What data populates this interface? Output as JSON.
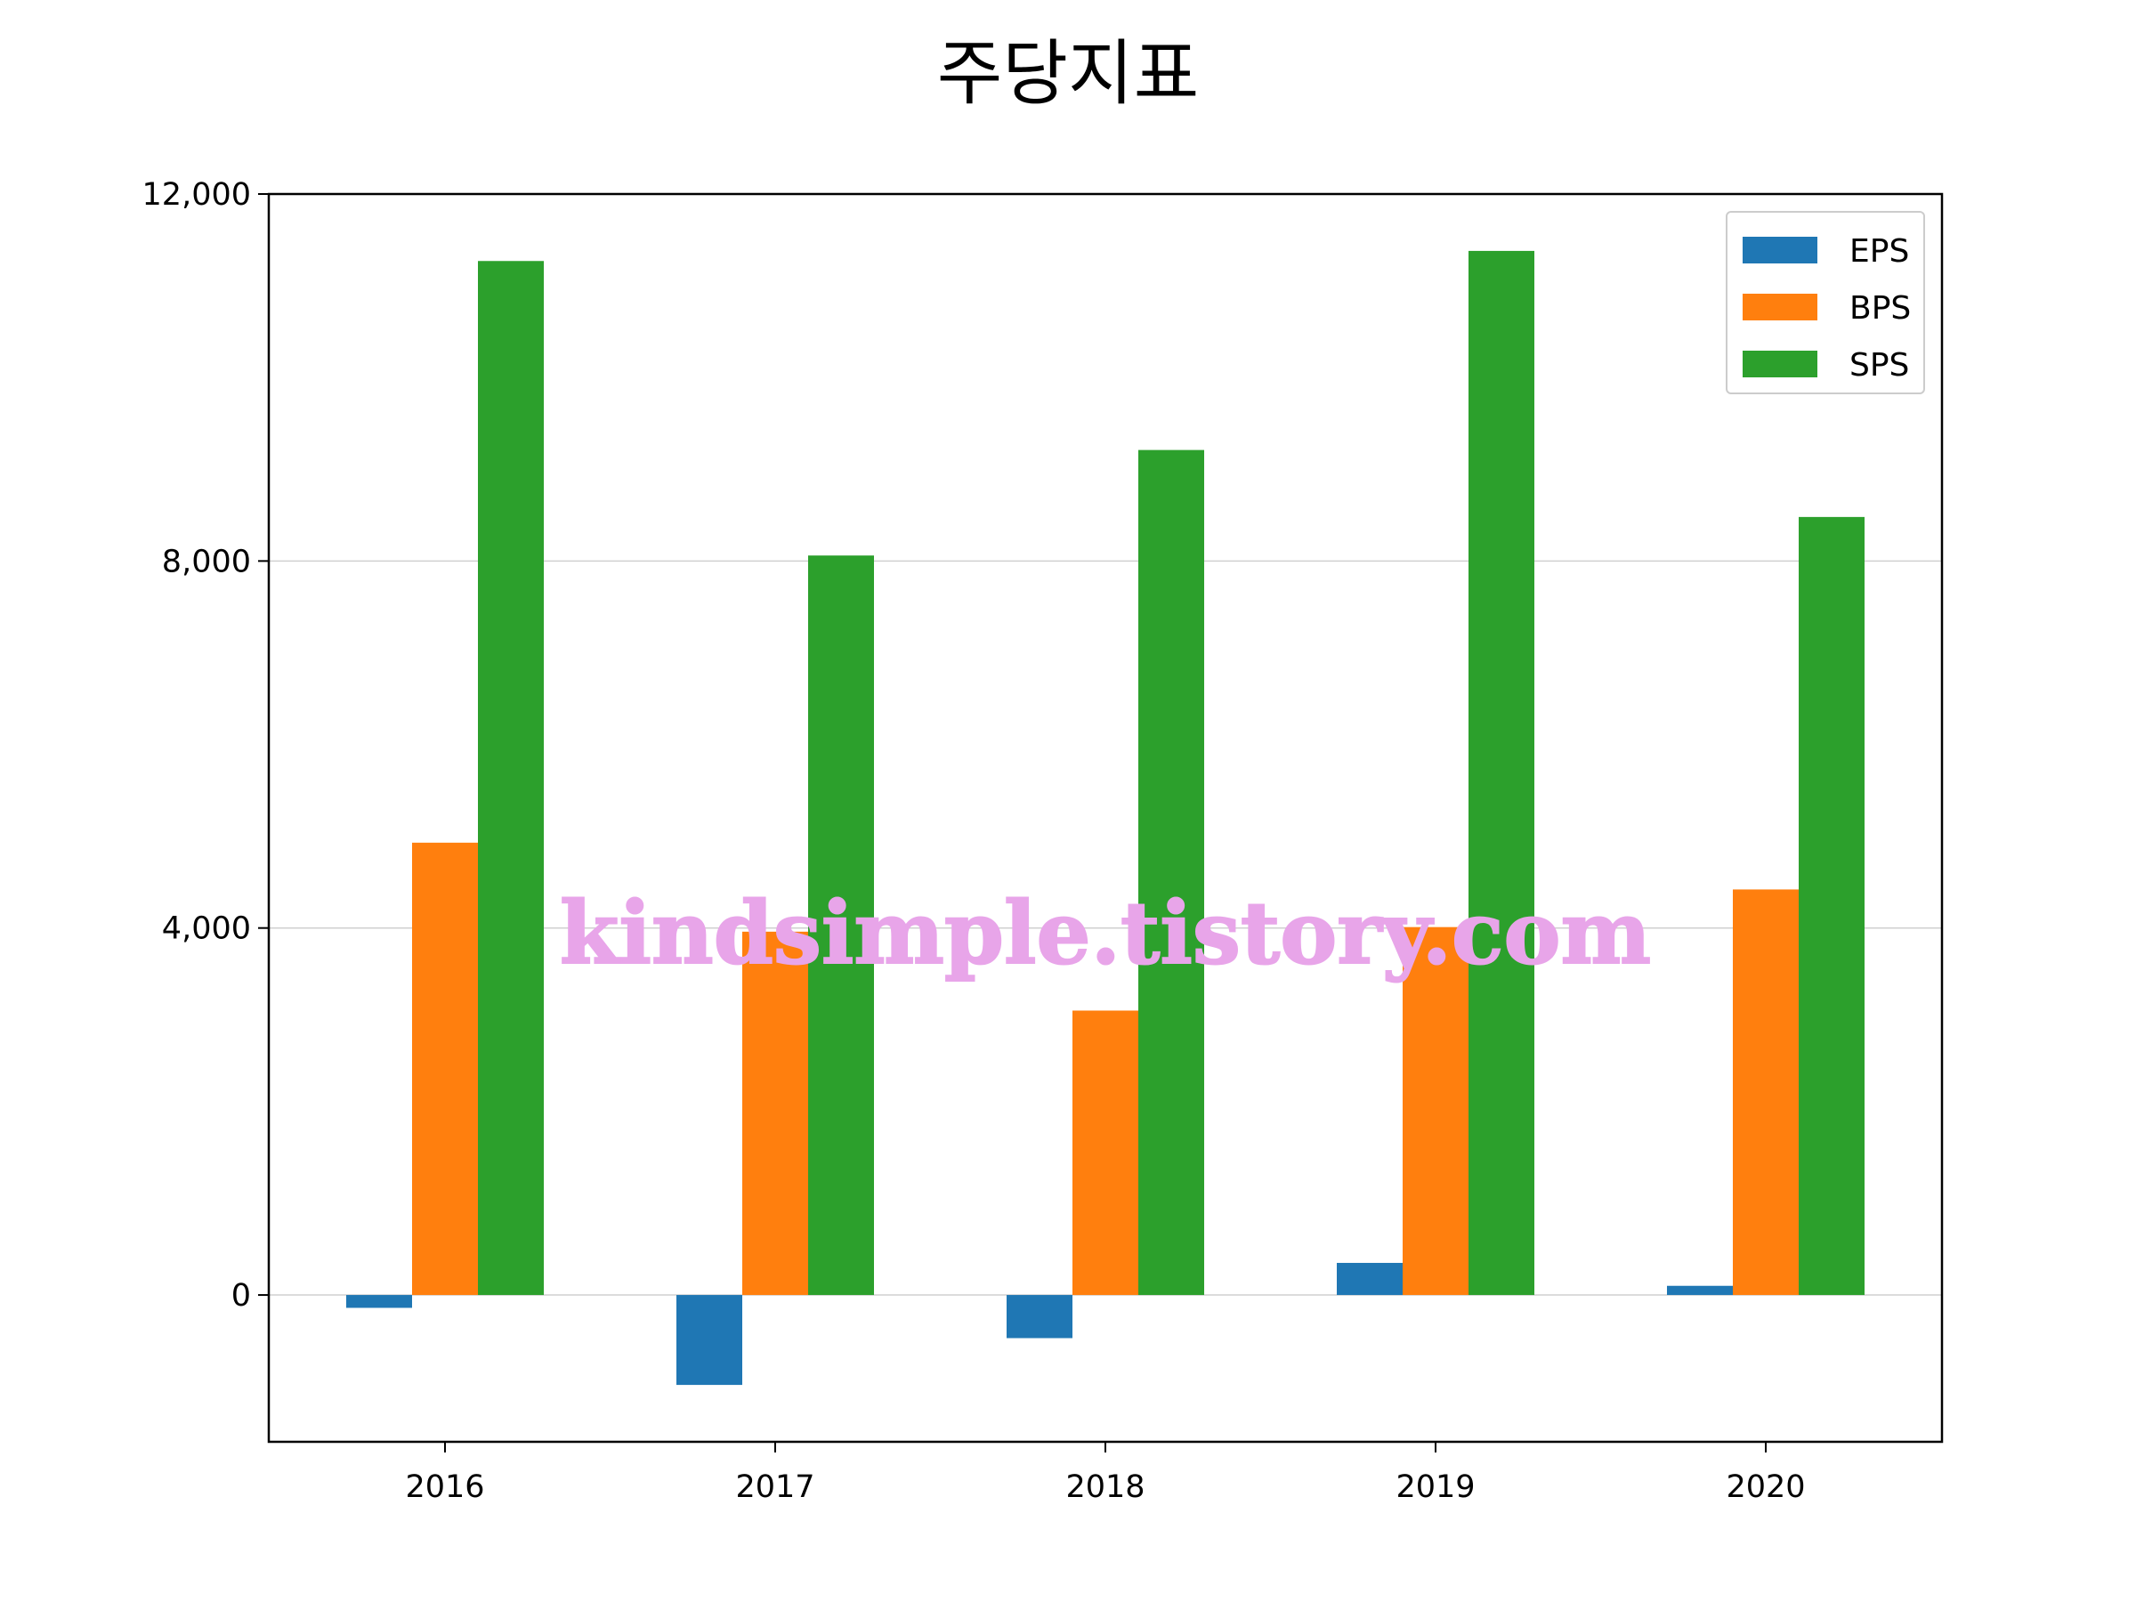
{
  "chart_data": {
    "type": "bar",
    "title": "주당지표",
    "xlabel": "",
    "ylabel": "",
    "categories": [
      "2016",
      "2017",
      "2018",
      "2019",
      "2020"
    ],
    "series": [
      {
        "name": "EPS",
        "color": "#1f77b4",
        "values": [
          -140,
          -980,
          -470,
          350,
          100
        ]
      },
      {
        "name": "BPS",
        "color": "#ff7f0e",
        "values": [
          4930,
          3960,
          3100,
          4010,
          4420
        ]
      },
      {
        "name": "SPS",
        "color": "#2ca02c",
        "values": [
          11270,
          8060,
          9210,
          11380,
          8480
        ]
      }
    ],
    "ylim": [
      -1600,
      12000
    ],
    "yticks": [
      0,
      4000,
      8000,
      12000
    ],
    "ytick_labels": [
      "0",
      "4,000",
      "8,000",
      "12,000"
    ],
    "grid": "y",
    "legend_position": "top-right"
  },
  "watermark": "kindsimple.tistory.com",
  "watermark_color": "#e8a5e9"
}
